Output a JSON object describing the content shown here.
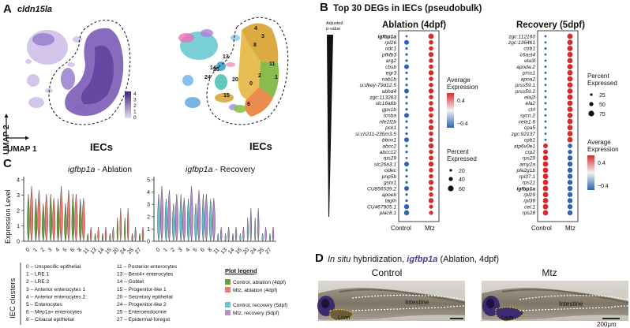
{
  "colors": {
    "purple": "#7b5bb5",
    "light_purple": "#b9a3dc",
    "red": "#d62b2b",
    "blue": "#2e63b0",
    "green": "#6aa231",
    "salmon": "#f07a70",
    "cyan": "#5fc6d8",
    "violet": "#b98ad6"
  },
  "panel_a": {
    "letter": "A",
    "gene_title": "cldn15la",
    "umap2": "UMAP 2",
    "umap1": "UMAP 1",
    "iecs": "IECs",
    "legend_ticks": [
      "4",
      "3",
      "2",
      "1",
      "0"
    ],
    "cluster_numbers": [
      "4",
      "3",
      "8",
      "11",
      "14",
      "13",
      "25",
      "24",
      "20",
      "15",
      "6",
      "2",
      "0",
      "1"
    ]
  },
  "panel_b": {
    "letter": "B",
    "title": "Top 30 DEGs in IECs (pseudobulk)",
    "adj_label_1": "Adjusted",
    "adj_label_2": "p-value",
    "ablation_title": "Ablation (4dpf)",
    "recovery_title": "Recovery (5dpf)",
    "x_control": "Control",
    "x_mtz": "Mtz",
    "ablation_genes": [
      "igfbp1a",
      "rpl26",
      "odc1",
      "pfkfb3",
      "arg2",
      "cbsb",
      "egr3",
      "nab1b",
      "si:dkey-79d12.5",
      "abhd4",
      "zgc:113263",
      "slc16a6b",
      "gpx1b",
      "tcnba",
      "nfe2l2b",
      "pck1",
      "si:ch211-235m3.5",
      "bbox1",
      "abcc2",
      "abcc12",
      "rps29",
      "slc26a3.1",
      "cidec",
      "pnp5b",
      "gsto1",
      "CU856539.2",
      "apoeb",
      "tagln",
      "CU467905.1",
      "plac8.1"
    ],
    "recovery_genes": [
      "zgc:112160",
      "zgc:136461",
      "ctrb1",
      "c6ast4",
      "ela3l",
      "apoda.2",
      "prss1",
      "apoa2",
      "prss59.1",
      "prss59.2",
      "ela2l",
      "ela2",
      "ctrl",
      "sycn.2",
      "cela1.6",
      "cpa5",
      "zgc:92137",
      "cpb1",
      "atp6v0e1",
      "crp2",
      "rps29",
      "amy2a",
      "pla2g1b",
      "rpl37.1",
      "rps21",
      "igfbp1a",
      "rpl29",
      "rpl36",
      "cel.1",
      "rps28"
    ],
    "ablation_legend": {
      "avg_title_1": "Average",
      "avg_title_2": "Expression",
      "avg_ticks": [
        "0.4",
        "0.0",
        "−0.4"
      ],
      "pct_title_1": "Percent",
      "pct_title_2": "Expressed",
      "pct_ticks": [
        "20",
        "40",
        "60"
      ]
    },
    "recovery_legend": {
      "pct_title_1": "Percent",
      "pct_title_2": "Expressed",
      "pct_ticks": [
        "25",
        "50",
        "75"
      ],
      "avg_title_1": "Average",
      "avg_title_2": "Expression",
      "avg_ticks": [
        "0.4",
        "0.0",
        "−0.4"
      ]
    }
  },
  "panel_c": {
    "letter": "C",
    "ablation_title_gene": "igfbp1a",
    "ablation_title_rest": " - Ablation",
    "recovery_title_gene": "igfbp1a",
    "recovery_title_rest": " - Recovery",
    "ylabel": "Expression Level",
    "ablation_yticks": [
      "4",
      "3",
      "2",
      "1",
      "0"
    ],
    "recovery_yticks": [
      "5",
      "4",
      "3",
      "2",
      "1",
      "0"
    ],
    "x_categories": [
      "0",
      "1",
      "2",
      "3",
      "4",
      "5",
      "6",
      "8",
      "11",
      "13",
      "14",
      "15",
      "20",
      "24",
      "25",
      "27"
    ],
    "clusters_label": "IEC clusters",
    "clusters_col1": [
      "0 – Unspecific epithelial",
      "1 – LRE 1",
      "2 – LRE 2",
      "3 – Anterior enterocytes 1",
      "4 – Anterior enterocytes 2",
      "5 – Enterocytes",
      "6 – Mep1a+ enterocytes",
      "8 – Cloacal epithelial"
    ],
    "clusters_col2": [
      "11 – Posterior enterocytes",
      "13 – Best4+ enterocytes",
      "14 – Goblet",
      "15 – Progenitor-like 1",
      "20 – Secretory epithelial",
      "24 – Progenitor-like 2",
      "25 – Enteroendocrine",
      "27 – Epidermal-foregut"
    ],
    "plot_legend_title": "Plot legend",
    "plot_legend": [
      "Control, ablation (4dpf)",
      "Mtz, ablation (4dpf)",
      "Control, recovery (5dpf)",
      "Mtz, recovery (5dpf)"
    ]
  },
  "panel_d": {
    "letter": "D",
    "title_prefix": "In situ",
    "title_middle": " hybridization, ",
    "title_gene": "igfbp1a",
    "title_suffix": " (Ablation, 4dpf)",
    "control_label": "Control",
    "mtz_label": "Mtz",
    "intestine_label": "Intestine",
    "liver_label": "Liver",
    "scale_label": "200μm"
  }
}
